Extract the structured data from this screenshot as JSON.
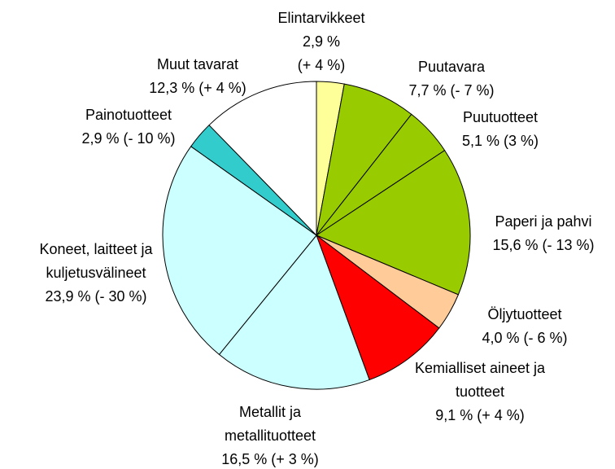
{
  "chart_data": {
    "type": "pie",
    "categories": [
      "Elintarvikkeet",
      "Puutavara",
      "Puutuotteet",
      "Paperi ja pahvi",
      "Öljytuotteet",
      "Kemialliset aineet ja tuotteet",
      "Metallit ja metallituotteet",
      "Koneet, laitteet ja kuljetusvälineet",
      "Painotuotteet",
      "Muut tavarat"
    ],
    "values": [
      2.9,
      7.7,
      5.1,
      15.6,
      4.0,
      9.1,
      16.5,
      23.9,
      2.9,
      12.3
    ],
    "value_labels": [
      "2,9 %",
      "7,7 %",
      "5,1 %",
      "15,6 %",
      "4,0 %",
      "9,1 %",
      "16,5 %",
      "23,9 %",
      "2,9 %",
      "12,3 %"
    ],
    "change_labels": [
      "(+ 4 %)",
      "(- 7 %)",
      "(3 %)",
      "(- 13 %)",
      "(- 6 %)",
      "(+ 4 %)",
      "(+ 3 %)",
      "(- 30 %)",
      "(- 10 %)",
      "(+ 4 %)"
    ],
    "colors": [
      "#ffff99",
      "#99cc00",
      "#99cc00",
      "#99cc00",
      "#ffcc99",
      "#ff0000",
      "#ccffff",
      "#ccffff",
      "#33cccc",
      "#ffffff"
    ]
  }
}
